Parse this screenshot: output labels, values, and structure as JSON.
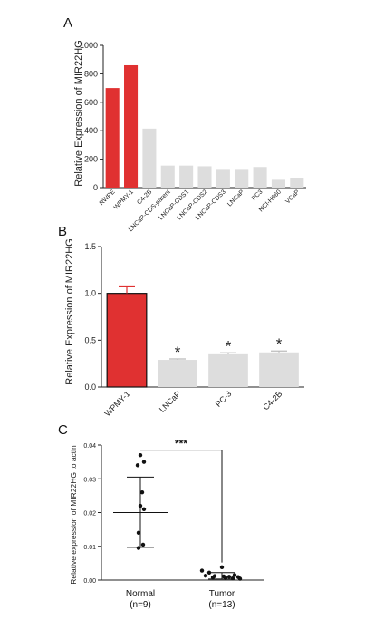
{
  "panel_labels": [
    "A",
    "B",
    "C"
  ],
  "colors": {
    "highlight": "#e03131",
    "normal": "#dddddd",
    "error": "#e03131",
    "axis": "#222222"
  },
  "chart_data": [
    {
      "panel": "A",
      "type": "bar",
      "ylabel": "Relative Expression of MIR22HG",
      "ylim": [
        0,
        1000
      ],
      "yticks": [
        "0",
        "200",
        "400",
        "600",
        "800",
        "1000"
      ],
      "categories": [
        "RWPE",
        "WPMY-1",
        "C4-2B",
        "LNCaP-CDS-parent",
        "LNCaP-CDS1",
        "LNCaP-CDS2",
        "LNCaP-CDS3",
        "LNCaP",
        "PC3",
        "NCI-H660",
        "VCaP"
      ],
      "values": [
        700,
        860,
        415,
        155,
        155,
        150,
        125,
        125,
        145,
        55,
        70
      ],
      "highlight": [
        true,
        true,
        false,
        false,
        false,
        false,
        false,
        false,
        false,
        false,
        false
      ]
    },
    {
      "panel": "B",
      "type": "bar",
      "ylabel": "Relative Expression of MIR22HG",
      "ylim": [
        0,
        1.5
      ],
      "yticks": [
        "0.0",
        "0.5",
        "1.0",
        "1.5"
      ],
      "categories": [
        "WPMY-1",
        "LNCaP",
        "PC-3",
        "C4-2B"
      ],
      "values": [
        1.0,
        0.29,
        0.35,
        0.37
      ],
      "errors": [
        0.07,
        0.01,
        0.015,
        0.015
      ],
      "highlight": [
        true,
        false,
        false,
        false
      ],
      "significance": [
        "",
        "*",
        "*",
        "*"
      ]
    },
    {
      "panel": "C",
      "type": "scatter",
      "ylabel": "Relative expression of MIR22HG to actin",
      "ylim": [
        0,
        0.04
      ],
      "yticks": [
        "0.00",
        "0.01",
        "0.02",
        "0.03",
        "0.04"
      ],
      "groups": [
        {
          "label": "Normal",
          "n_label": "(n=9)",
          "mean": 0.02,
          "sd_low": 0.0097,
          "sd_high": 0.0305,
          "points": [
            0.037,
            0.035,
            0.034,
            0.026,
            0.022,
            0.021,
            0.014,
            0.0105,
            0.0095
          ]
        },
        {
          "label": "Tumor",
          "n_label": "(n=13)",
          "mean": 0.0012,
          "sd_low": 0.0003,
          "sd_high": 0.0022,
          "points": [
            0.0038,
            0.0028,
            0.0022,
            0.0015,
            0.0013,
            0.0012,
            0.0011,
            0.001,
            0.0009,
            0.0008,
            0.0007,
            0.0005,
            0.0004
          ]
        }
      ],
      "significance": "***"
    }
  ]
}
